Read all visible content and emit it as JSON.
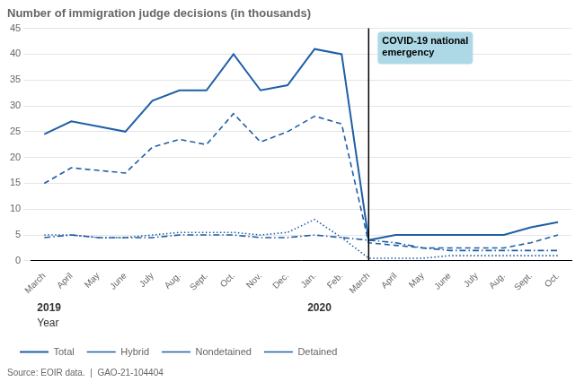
{
  "chart_data": {
    "type": "line",
    "title": "Number of immigration judge decisions (in thousands)",
    "categories": [
      "March",
      "April",
      "May",
      "June",
      "July",
      "Aug.",
      "Sept.",
      "Oct.",
      "Nov.",
      "Dec.",
      "Jan.",
      "Feb.",
      "March",
      "April",
      "May",
      "June",
      "July",
      "Aug.",
      "Sept.",
      "Oct."
    ],
    "series": [
      {
        "name": "Total",
        "color": "#1F5FA6",
        "line_style": "solid",
        "values": [
          24.5,
          27.0,
          26.0,
          25.0,
          31.0,
          33.0,
          33.0,
          40.0,
          33.0,
          34.0,
          41.0,
          40.0,
          4.0,
          5.0,
          5.0,
          5.0,
          5.0,
          5.0,
          6.5,
          7.5
        ]
      },
      {
        "name": "Hybrid",
        "color": "#1F5FA6",
        "line_style": "dashed",
        "values": [
          15.0,
          18.0,
          17.5,
          17.0,
          22.0,
          23.5,
          22.5,
          28.5,
          23.0,
          25.0,
          28.0,
          26.5,
          3.5,
          3.0,
          2.5,
          2.5,
          2.5,
          2.5,
          3.5,
          5.0
        ]
      },
      {
        "name": "Nondetained",
        "color": "#1F5FA6",
        "line_style": "dotted",
        "values": [
          5.0,
          5.0,
          4.5,
          4.5,
          5.0,
          5.5,
          5.5,
          5.5,
          5.0,
          5.5,
          8.0,
          4.5,
          0.5,
          0.5,
          0.5,
          1.0,
          1.0,
          1.0,
          1.0,
          1.0
        ]
      },
      {
        "name": "Detained",
        "color": "#1F5FA6",
        "line_style": "dashdot",
        "values": [
          4.5,
          5.0,
          4.5,
          4.5,
          4.5,
          5.0,
          5.0,
          5.0,
          4.5,
          4.5,
          5.0,
          4.5,
          4.0,
          3.5,
          2.5,
          2.0,
          2.0,
          2.0,
          2.0,
          2.0
        ]
      }
    ],
    "ylim": [
      0,
      45
    ],
    "yticks": [
      0,
      5,
      10,
      15,
      20,
      25,
      30,
      35,
      40,
      45
    ],
    "grid": true,
    "legend": "bottom",
    "x_label": "Year",
    "x_group_labels": [
      {
        "label": "2019",
        "x": 0
      },
      {
        "label": "2020",
        "x": 10
      }
    ],
    "annotations": [
      {
        "text": "COVID-19 national\nemergency",
        "x": 12,
        "color": "#ADD8E6"
      }
    ],
    "source": "Source: EOIR data.  |  GAO-21-104404"
  }
}
